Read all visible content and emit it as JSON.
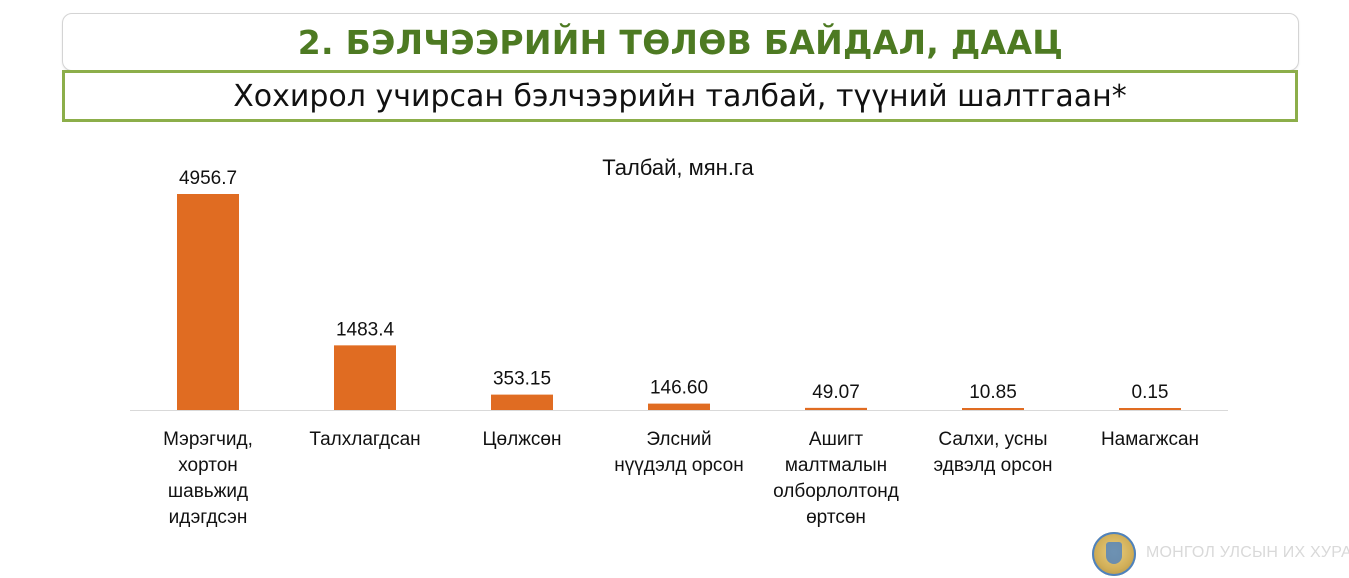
{
  "header": {
    "title": "2. БЭЛЧЭЭРИЙН ТӨЛӨВ БАЙДАЛ, ДААЦ",
    "subtitle": "Хохирол учирсан бэлчээрийн талбай, түүний шалтгаан*"
  },
  "footer": {
    "watermark": "МОНГОЛ УЛСЫН ИХ ХУРАЛ",
    "emblem_icon": "state-emblem-icon"
  },
  "colors": {
    "title": "#4d7a22",
    "subtitle_border": "#8cae4a",
    "bar": "#e06c22"
  },
  "chart_data": {
    "type": "bar",
    "title": "Талбай, мян.га",
    "categories": [
      [
        "Мэрэгчид,",
        "хортон",
        "шавьжид",
        "идэгдсэн"
      ],
      [
        "Талхлагдсан"
      ],
      [
        "Цөлжсөн"
      ],
      [
        "Элсний",
        "нүүдэлд орсон"
      ],
      [
        "Ашигт",
        "малтмалын",
        "олборлолтонд",
        "өртсөн"
      ],
      [
        "Салхи, усны",
        "эдвэлд орсон"
      ],
      [
        "Намагжсан"
      ]
    ],
    "values": [
      4956.7,
      1483.4,
      353.15,
      146.6,
      49.07,
      10.85,
      0.15
    ],
    "value_labels": [
      "4956.7",
      "1483.4",
      "353.15",
      "146.60",
      "49.07",
      "10.85",
      "0.15"
    ],
    "ylim": [
      0,
      4956.7
    ],
    "grid": false,
    "legend": false
  }
}
